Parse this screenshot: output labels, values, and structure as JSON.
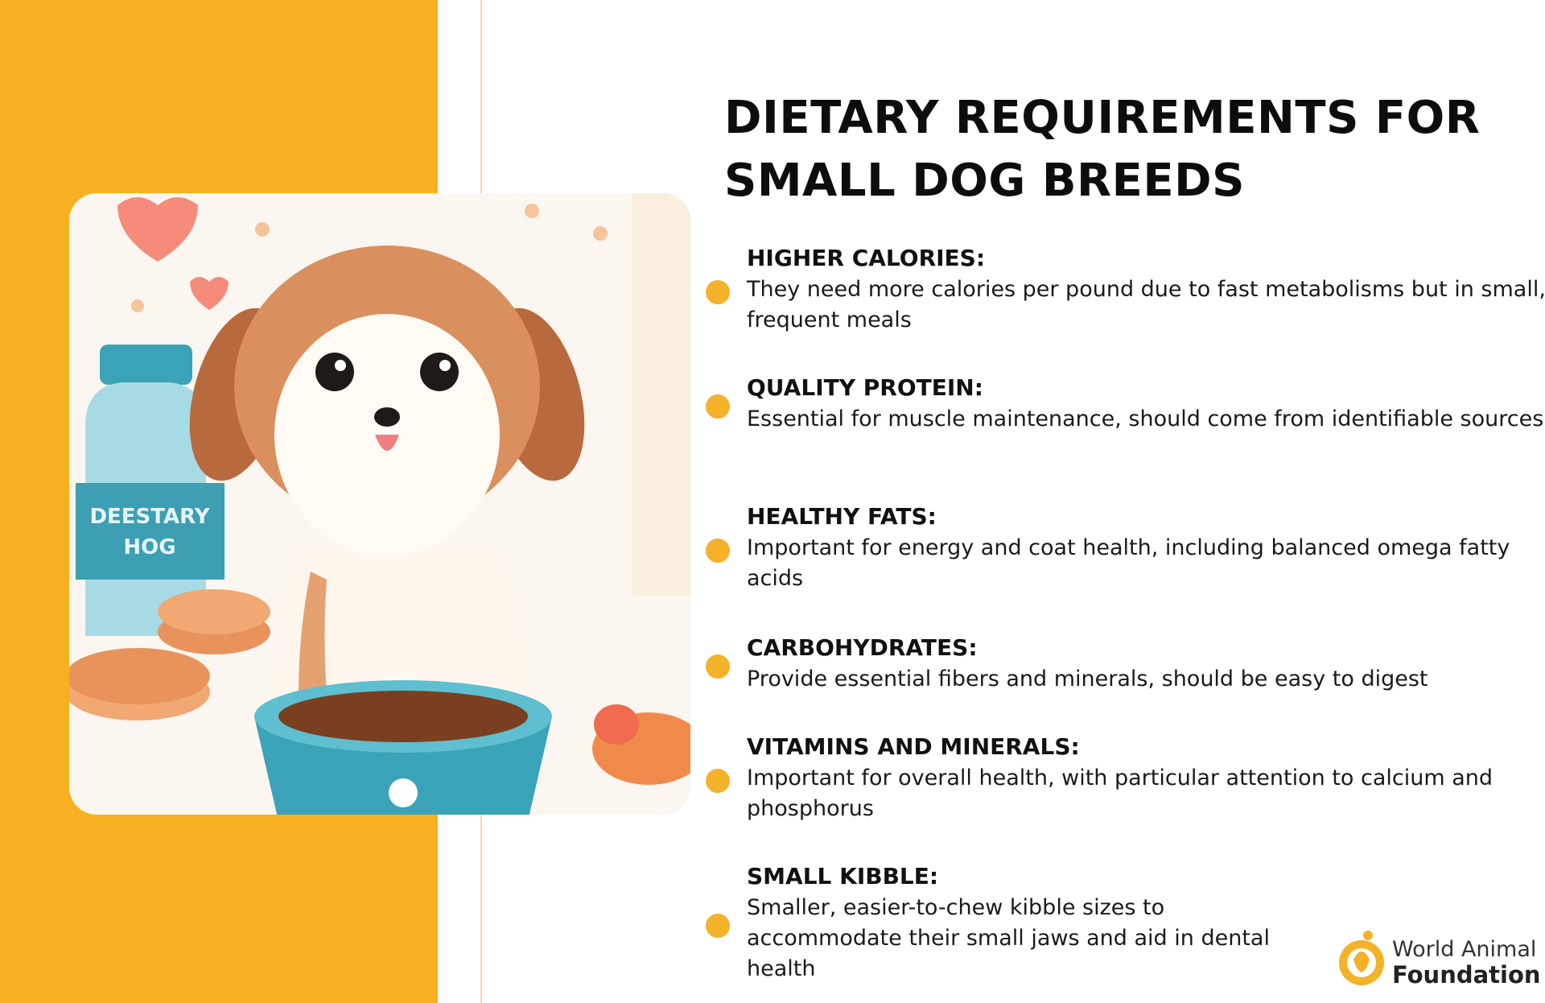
{
  "title": "DIETARY REQUIREMENTS FOR SMALL DOG BREEDS",
  "illustration": {
    "bottle_label": [
      "DEESTARY",
      "HOG"
    ]
  },
  "items": [
    {
      "heading": "HIGHER CALORIES:",
      "text": "They need more calories per pound due to fast metabolisms but in small, frequent meals"
    },
    {
      "heading": "QUALITY PROTEIN:",
      "text": "Essential for muscle maintenance, should come from identifiable sources"
    },
    {
      "heading": "HEALTHY FATS:",
      "text": "Important for energy and coat health, including balanced omega fatty acids"
    },
    {
      "heading": "CARBOHYDRATES:",
      "text": "Provide essential fibers and minerals, should be easy to digest"
    },
    {
      "heading": "VITAMINS AND MINERALS:",
      "text": "Important for overall health, with particular attention to calcium and phosphorus"
    },
    {
      "heading": "SMALL KIBBLE:",
      "text": "Smaller, easier-to-chew kibble sizes to accommodate their small jaws and aid in dental health"
    }
  ],
  "logo": {
    "line1": "World Animal",
    "line2": "Foundation"
  }
}
